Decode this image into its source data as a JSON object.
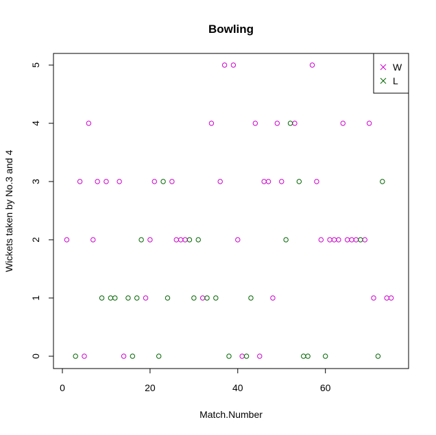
{
  "chart_data": {
    "type": "scatter",
    "title": "Bowling",
    "xlabel": "Match.Number",
    "ylabel": "Wickets taken by No.3 and 4",
    "xlim": [
      0,
      76
    ],
    "ylim": [
      0,
      5
    ],
    "x_ticks": [
      0,
      20,
      40,
      60
    ],
    "y_ticks": [
      0,
      1,
      2,
      3,
      4,
      5
    ],
    "grid": false,
    "legend_position": "top-right",
    "series": [
      {
        "name": "W",
        "color": "#cc00cc",
        "marker": "circle",
        "legend_marker": "x",
        "points": [
          [
            1,
            2
          ],
          [
            4,
            3
          ],
          [
            5,
            0
          ],
          [
            6,
            4
          ],
          [
            7,
            2
          ],
          [
            8,
            3
          ],
          [
            10,
            3
          ],
          [
            13,
            3
          ],
          [
            14,
            0
          ],
          [
            19,
            1
          ],
          [
            20,
            2
          ],
          [
            21,
            3
          ],
          [
            25,
            3
          ],
          [
            26,
            2
          ],
          [
            27,
            2
          ],
          [
            28,
            2
          ],
          [
            32,
            1
          ],
          [
            34,
            4
          ],
          [
            36,
            3
          ],
          [
            37,
            5
          ],
          [
            39,
            5
          ],
          [
            40,
            2
          ],
          [
            41,
            0
          ],
          [
            44,
            4
          ],
          [
            45,
            0
          ],
          [
            46,
            3
          ],
          [
            47,
            3
          ],
          [
            48,
            1
          ],
          [
            49,
            4
          ],
          [
            50,
            3
          ],
          [
            53,
            4
          ],
          [
            57,
            5
          ],
          [
            58,
            3
          ],
          [
            59,
            2
          ],
          [
            61,
            2
          ],
          [
            62,
            2
          ],
          [
            63,
            2
          ],
          [
            64,
            4
          ],
          [
            65,
            2
          ],
          [
            66,
            2
          ],
          [
            67,
            2
          ],
          [
            69,
            2
          ],
          [
            70,
            4
          ],
          [
            71,
            1
          ],
          [
            74,
            1
          ],
          [
            75,
            1
          ]
        ]
      },
      {
        "name": "L",
        "color": "#006400",
        "marker": "circle",
        "legend_marker": "x",
        "points": [
          [
            3,
            0
          ],
          [
            9,
            1
          ],
          [
            11,
            1
          ],
          [
            12,
            1
          ],
          [
            15,
            1
          ],
          [
            16,
            0
          ],
          [
            17,
            1
          ],
          [
            18,
            2
          ],
          [
            22,
            0
          ],
          [
            23,
            3
          ],
          [
            24,
            1
          ],
          [
            29,
            2
          ],
          [
            30,
            1
          ],
          [
            31,
            2
          ],
          [
            33,
            1
          ],
          [
            35,
            1
          ],
          [
            38,
            0
          ],
          [
            42,
            0
          ],
          [
            43,
            1
          ],
          [
            51,
            2
          ],
          [
            52,
            4
          ],
          [
            54,
            3
          ],
          [
            55,
            0
          ],
          [
            56,
            0
          ],
          [
            60,
            0
          ],
          [
            68,
            2
          ],
          [
            72,
            0
          ],
          [
            73,
            3
          ]
        ]
      }
    ]
  }
}
